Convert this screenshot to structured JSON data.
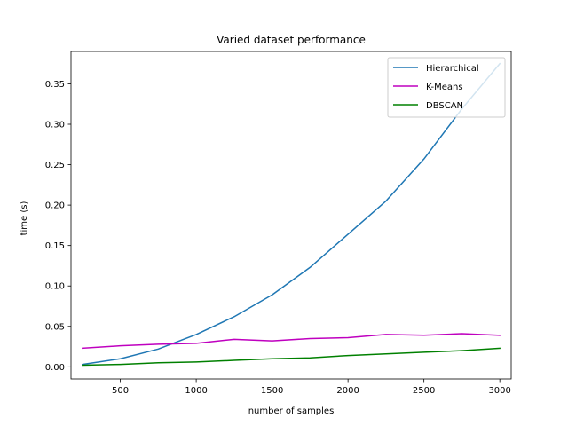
{
  "chart_data": {
    "type": "line",
    "title": "Varied dataset performance",
    "xlabel": "number of samples",
    "ylabel": "time (s)",
    "xlim": [
      175,
      3075
    ],
    "ylim": [
      -0.015,
      0.39
    ],
    "xticks": [
      500,
      1000,
      1500,
      2000,
      2500,
      3000
    ],
    "yticks": [
      0.0,
      0.05,
      0.1,
      0.15,
      0.2,
      0.25,
      0.3,
      0.35
    ],
    "xtick_labels": [
      "500",
      "1000",
      "1500",
      "2000",
      "2500",
      "3000"
    ],
    "ytick_labels": [
      "0.00",
      "0.05",
      "0.10",
      "0.15",
      "0.20",
      "0.25",
      "0.30",
      "0.35"
    ],
    "grid": false,
    "legend_position": "top-right",
    "x": [
      250,
      500,
      750,
      1000,
      1250,
      1500,
      1750,
      2000,
      2250,
      2500,
      2750,
      3000
    ],
    "series": [
      {
        "name": "Hierarchical",
        "color": "#1f77b4",
        "values": [
          0.003,
          0.01,
          0.022,
          0.04,
          0.062,
          0.089,
          0.123,
          0.164,
          0.205,
          0.257,
          0.319,
          0.375
        ]
      },
      {
        "name": "K-Means",
        "color": "#bf00bf",
        "values": [
          0.023,
          0.026,
          0.028,
          0.029,
          0.034,
          0.032,
          0.035,
          0.036,
          0.04,
          0.039,
          0.041,
          0.039
        ]
      },
      {
        "name": "DBSCAN",
        "color": "#008000",
        "values": [
          0.002,
          0.003,
          0.005,
          0.006,
          0.008,
          0.01,
          0.011,
          0.014,
          0.016,
          0.018,
          0.02,
          0.023
        ]
      }
    ]
  }
}
